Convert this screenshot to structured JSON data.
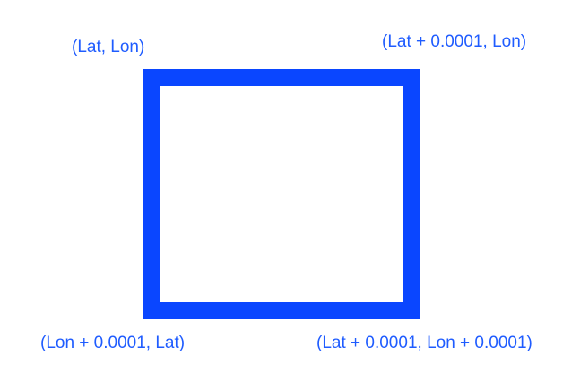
{
  "diagram": {
    "colors": {
      "square_stroke": "#0a46ff",
      "label_text": "#1f5cff",
      "background": "#ffffff"
    },
    "corner_labels": {
      "top_left": "(Lat, Lon)",
      "top_right": "(Lat + 0.0001, Lon)",
      "bottom_left": "(Lon + 0.0001, Lat)",
      "bottom_right": "(Lat + 0.0001, Lon + 0.0001)"
    }
  }
}
